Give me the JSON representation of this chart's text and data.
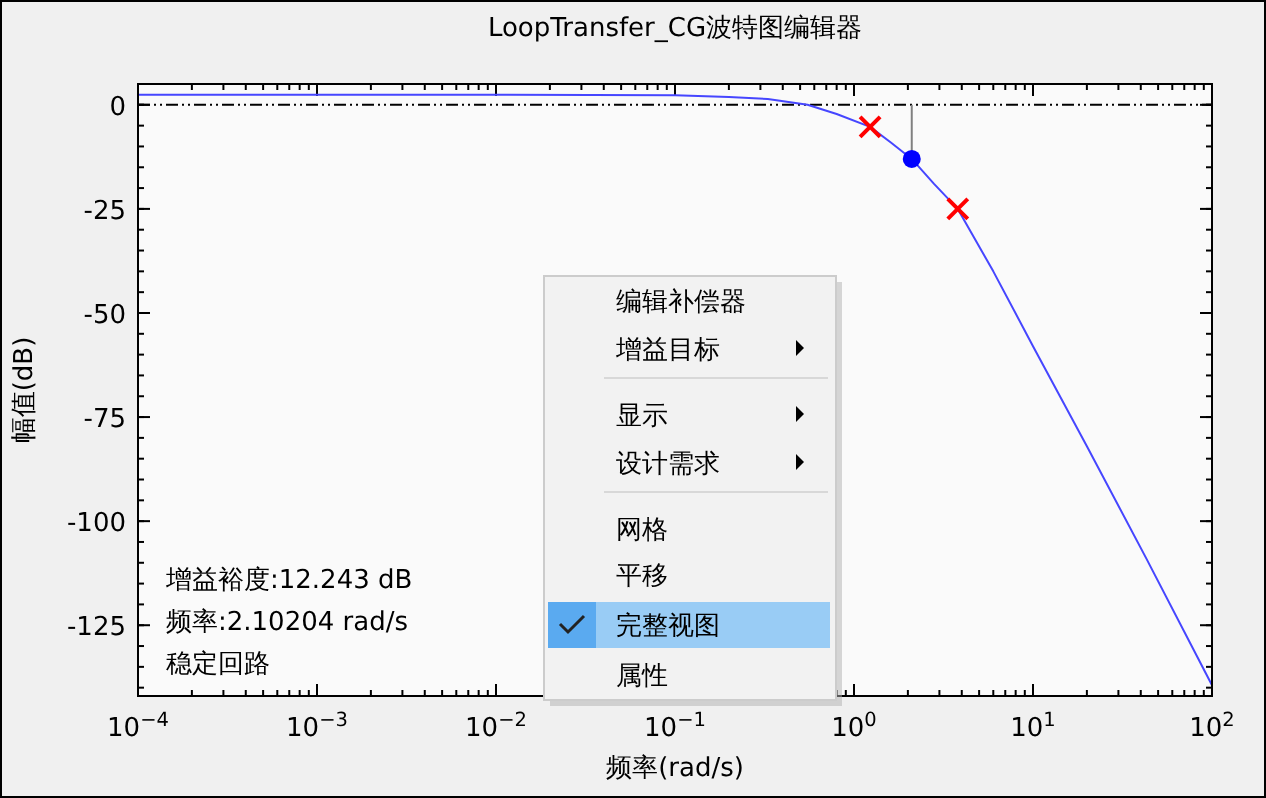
{
  "chart_data": [
    {
      "type": "line",
      "title": "LoopTransfer_CG波特图编辑器",
      "xlabel": "频率(rad/s)",
      "ylabel": "幅值(dB)",
      "log": "x",
      "xlim": [
        0.0001,
        100
      ],
      "ylim": [
        -142,
        5
      ],
      "xticks": [
        {
          "value": 0.0001,
          "label": "10$^{−4}$"
        },
        {
          "value": 0.001,
          "label": "10$^{−3}$"
        },
        {
          "value": 0.01,
          "label": "10$^{−2}$"
        },
        {
          "value": 0.1,
          "label": "10$^{−1}$"
        },
        {
          "value": 1,
          "label": "10$^{0}$"
        },
        {
          "value": 10,
          "label": "10$^{1}$"
        },
        {
          "value": 100,
          "label": "10$^{2}$"
        }
      ],
      "yticks": [
        0,
        -25,
        -50,
        -75,
        -100,
        -125
      ],
      "series": [
        {
          "color": "#4646ff",
          "x": [
            0.0001,
            0.001,
            0.01,
            0.1,
            0.2,
            0.33,
            0.55,
            0.8,
            1.23,
            1.6,
            2.10204,
            2.8,
            3.8,
            6,
            10,
            20,
            43,
            100
          ],
          "values": [
            2.4,
            2.4,
            2.4,
            2.3,
            1.9,
            1.4,
            0,
            -2.2,
            -5.3,
            -9,
            -13,
            -19,
            -25,
            -40,
            -58,
            -82,
            -109,
            -139.4
          ]
        },
        {
          "type": "scatter",
          "marker": "cross",
          "color": "#ff0000",
          "x": [
            1.23,
            3.8
          ],
          "values": [
            -5.3,
            -25
          ]
        },
        {
          "type": "line",
          "color": "#808080",
          "x": [
            2.10204,
            2.10204
          ],
          "values": [
            0,
            -13
          ]
        },
        {
          "type": "scatter",
          "marker": "circle",
          "color": "#0000ff",
          "x": [
            2.10204
          ],
          "values": [
            -13
          ]
        }
      ],
      "ref_lines": [
        {
          "axis": "y",
          "value": 0,
          "color": "#000000",
          "line_style": "dashed"
        }
      ],
      "annotations": [
        "增益裕度:12.243 dB",
        "频率:2.10204 rad/s",
        "稳定回路"
      ]
    },
    {
      "type": "other",
      "annotations": [
        "编辑补偿器",
        "增益目标",
        "显示",
        "设计需求",
        "网格",
        "平移",
        "完整视图",
        "属性"
      ]
    }
  ]
}
